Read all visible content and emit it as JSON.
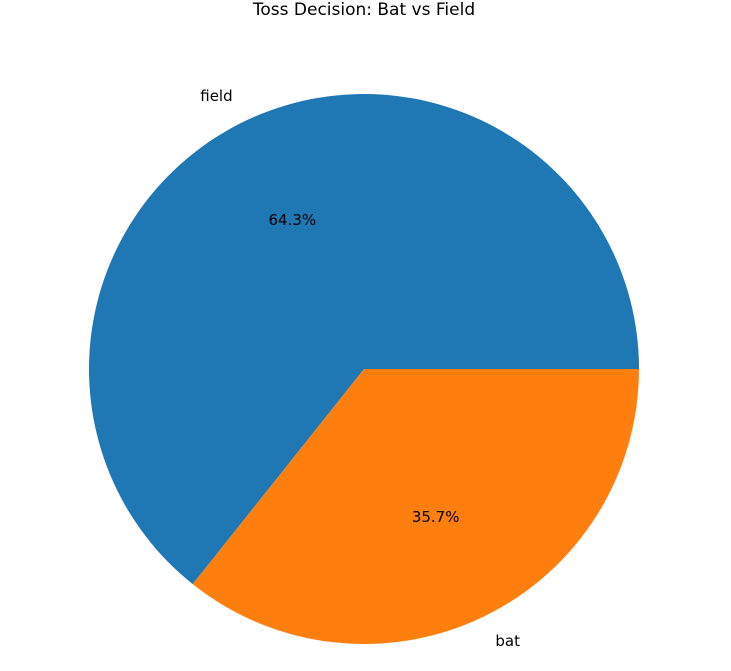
{
  "chart_data": {
    "type": "pie",
    "title": "Toss Decision: Bat vs Field",
    "categories": [
      "field",
      "bat"
    ],
    "values": [
      64.3,
      35.7
    ],
    "percent_labels": [
      "64.3%",
      "35.7%"
    ],
    "colors": [
      "#1f77b4",
      "#ff7f0e"
    ],
    "start_angle_deg": 0,
    "direction": "counterclockwise",
    "legend": "none"
  }
}
